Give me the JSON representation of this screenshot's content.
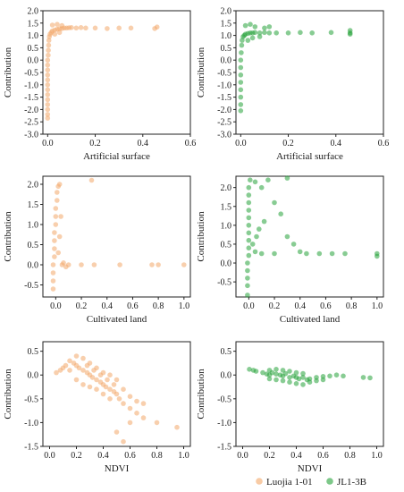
{
  "legend": {
    "position": "bottom-right",
    "items": [
      {
        "label": "Luojia 1-01",
        "color": "#f3a869"
      },
      {
        "label": "JL1-3B",
        "color": "#27a33a"
      }
    ]
  },
  "chart_data": [
    {
      "id": "artificial-surface-luojia",
      "type": "scatter",
      "xlabel": "Artificial surface",
      "ylabel": "Contribution",
      "xlim": [
        -0.02,
        0.6
      ],
      "ylim": [
        -3.0,
        2.0
      ],
      "xticks": [
        "0.0",
        "0.2",
        "0.4",
        "0.6"
      ],
      "yticks": [
        "-3.0",
        "-2.5",
        "-2.0",
        "-1.5",
        "-1.0",
        "-0.5",
        "0.0",
        "0.5",
        "1.0",
        "1.5",
        "2.0"
      ],
      "grid": false,
      "color": "#f3a869",
      "points": [
        [
          0.0,
          -2.35
        ],
        [
          0.0,
          -2.2
        ],
        [
          0.0,
          -2.0
        ],
        [
          0.0,
          -1.8
        ],
        [
          0.0,
          -1.6
        ],
        [
          0.0,
          -1.4
        ],
        [
          0.0,
          -1.2
        ],
        [
          0.0,
          -1.0
        ],
        [
          0.0,
          -0.8
        ],
        [
          0.0,
          -0.6
        ],
        [
          0.0,
          -0.4
        ],
        [
          0.0,
          -0.2
        ],
        [
          0.0,
          0.0
        ],
        [
          0.002,
          0.2
        ],
        [
          0.003,
          0.4
        ],
        [
          0.004,
          0.6
        ],
        [
          0.005,
          0.8
        ],
        [
          0.007,
          0.95
        ],
        [
          0.01,
          1.05
        ],
        [
          0.015,
          1.12
        ],
        [
          0.02,
          1.18
        ],
        [
          0.03,
          1.22
        ],
        [
          0.04,
          1.25
        ],
        [
          0.05,
          1.27
        ],
        [
          0.06,
          1.28
        ],
        [
          0.07,
          1.3
        ],
        [
          0.08,
          1.3
        ],
        [
          0.09,
          1.31
        ],
        [
          0.1,
          1.32
        ],
        [
          0.12,
          1.3
        ],
        [
          0.14,
          1.32
        ],
        [
          0.16,
          1.3
        ],
        [
          0.2,
          1.3
        ],
        [
          0.25,
          1.28
        ],
        [
          0.3,
          1.3
        ],
        [
          0.35,
          1.3
        ],
        [
          0.45,
          1.28
        ],
        [
          0.46,
          1.34
        ],
        [
          0.02,
          1.42
        ],
        [
          0.04,
          1.45
        ],
        [
          0.06,
          1.4
        ],
        [
          0.03,
          1.05
        ],
        [
          0.05,
          1.12
        ]
      ]
    },
    {
      "id": "artificial-surface-jl1",
      "type": "scatter",
      "xlabel": "Artificial surface",
      "ylabel": "Contribution",
      "xlim": [
        -0.02,
        0.6
      ],
      "ylim": [
        -3.0,
        2.0
      ],
      "xticks": [
        "0.0",
        "0.2",
        "0.4",
        "0.6"
      ],
      "yticks": [
        "-3.0",
        "-2.5",
        "-2.0",
        "-1.5",
        "-1.0",
        "-0.5",
        "0.0",
        "0.5",
        "1.0",
        "1.5",
        "2.0"
      ],
      "grid": false,
      "color": "#27a33a",
      "points": [
        [
          0.0,
          -2.05
        ],
        [
          0.0,
          -1.8
        ],
        [
          0.0,
          -1.5
        ],
        [
          0.0,
          -1.2
        ],
        [
          0.0,
          -0.9
        ],
        [
          0.0,
          -0.6
        ],
        [
          0.0,
          -0.3
        ],
        [
          0.0,
          0.0
        ],
        [
          0.002,
          0.3
        ],
        [
          0.004,
          0.6
        ],
        [
          0.006,
          0.8
        ],
        [
          0.01,
          0.95
        ],
        [
          0.015,
          1.0
        ],
        [
          0.02,
          1.05
        ],
        [
          0.03,
          1.08
        ],
        [
          0.04,
          1.1
        ],
        [
          0.05,
          1.1
        ],
        [
          0.06,
          1.12
        ],
        [
          0.08,
          1.1
        ],
        [
          0.1,
          1.12
        ],
        [
          0.12,
          1.1
        ],
        [
          0.15,
          1.1
        ],
        [
          0.2,
          1.1
        ],
        [
          0.25,
          1.12
        ],
        [
          0.3,
          1.1
        ],
        [
          0.38,
          1.12
        ],
        [
          0.46,
          1.1
        ],
        [
          0.46,
          1.2
        ],
        [
          0.46,
          1.05
        ],
        [
          0.02,
          1.4
        ],
        [
          0.04,
          1.45
        ],
        [
          0.06,
          1.35
        ],
        [
          0.03,
          0.8
        ],
        [
          0.05,
          0.9
        ],
        [
          0.08,
          0.95
        ],
        [
          0.1,
          1.3
        ],
        [
          0.12,
          1.35
        ]
      ]
    },
    {
      "id": "cultivated-land-luojia",
      "type": "scatter",
      "xlabel": "Cultivated land",
      "ylabel": "Contribution",
      "xlim": [
        -0.1,
        1.05
      ],
      "ylim": [
        -0.8,
        2.2
      ],
      "xticks": [
        "0.0",
        "0.2",
        "0.4",
        "0.6",
        "0.8",
        "1.0"
      ],
      "yticks": [
        "-0.5",
        "0.0",
        "0.5",
        "1.0",
        "1.5",
        "2.0"
      ],
      "grid": false,
      "color": "#f3a869",
      "points": [
        [
          -0.02,
          -0.6
        ],
        [
          -0.02,
          -0.4
        ],
        [
          -0.02,
          -0.2
        ],
        [
          -0.02,
          0.0
        ],
        [
          -0.01,
          0.2
        ],
        [
          -0.01,
          0.4
        ],
        [
          -0.01,
          0.6
        ],
        [
          -0.01,
          0.8
        ],
        [
          0.0,
          1.0
        ],
        [
          0.0,
          1.2
        ],
        [
          0.0,
          1.4
        ],
        [
          0.01,
          1.6
        ],
        [
          0.01,
          1.8
        ],
        [
          0.02,
          1.95
        ],
        [
          0.03,
          2.0
        ],
        [
          0.05,
          0.0
        ],
        [
          0.1,
          0.0
        ],
        [
          0.2,
          0.0
        ],
        [
          0.3,
          0.0
        ],
        [
          0.5,
          0.0
        ],
        [
          0.75,
          0.0
        ],
        [
          0.8,
          0.0
        ],
        [
          1.0,
          0.0
        ],
        [
          0.28,
          2.1
        ],
        [
          0.02,
          0.3
        ],
        [
          0.03,
          0.7
        ],
        [
          0.04,
          1.2
        ],
        [
          0.06,
          0.05
        ],
        [
          0.08,
          -0.05
        ]
      ]
    },
    {
      "id": "cultivated-land-jl1",
      "type": "scatter",
      "xlabel": "Cultivated land",
      "ylabel": "Contribution",
      "xlim": [
        -0.1,
        1.05
      ],
      "ylim": [
        -0.9,
        2.3
      ],
      "xticks": [
        "0.0",
        "0.2",
        "0.4",
        "0.6",
        "0.8",
        "1.0"
      ],
      "yticks": [
        "-0.5",
        "0.0",
        "0.5",
        "1.0",
        "1.5",
        "2.0"
      ],
      "grid": false,
      "color": "#27a33a",
      "points": [
        [
          -0.01,
          -0.85
        ],
        [
          -0.01,
          -0.6
        ],
        [
          -0.01,
          -0.4
        ],
        [
          -0.01,
          -0.2
        ],
        [
          -0.01,
          0.0
        ],
        [
          0.0,
          0.2
        ],
        [
          0.0,
          0.4
        ],
        [
          0.0,
          0.6
        ],
        [
          0.0,
          0.8
        ],
        [
          0.0,
          1.0
        ],
        [
          0.0,
          1.2
        ],
        [
          0.0,
          1.4
        ],
        [
          0.0,
          1.6
        ],
        [
          0.0,
          1.8
        ],
        [
          0.0,
          2.0
        ],
        [
          0.01,
          2.2
        ],
        [
          0.05,
          2.15
        ],
        [
          0.1,
          2.0
        ],
        [
          0.15,
          2.2
        ],
        [
          0.2,
          1.6
        ],
        [
          0.25,
          1.3
        ],
        [
          0.3,
          0.7
        ],
        [
          0.35,
          0.5
        ],
        [
          0.4,
          0.3
        ],
        [
          0.45,
          0.25
        ],
        [
          0.55,
          0.25
        ],
        [
          0.65,
          0.25
        ],
        [
          0.75,
          0.25
        ],
        [
          1.0,
          0.25
        ],
        [
          1.0,
          0.18
        ],
        [
          0.3,
          2.25
        ],
        [
          0.05,
          0.3
        ],
        [
          0.1,
          0.25
        ],
        [
          0.2,
          0.25
        ],
        [
          0.08,
          0.9
        ],
        [
          0.12,
          1.1
        ],
        [
          0.03,
          0.5
        ],
        [
          0.06,
          0.7
        ]
      ]
    },
    {
      "id": "ndvi-luojia",
      "type": "scatter",
      "xlabel": "NDVI",
      "ylabel": "Contribution",
      "xlim": [
        -0.05,
        1.05
      ],
      "ylim": [
        -1.5,
        0.7
      ],
      "xticks": [
        "0.0",
        "0.2",
        "0.4",
        "0.6",
        "0.8",
        "1.0"
      ],
      "yticks": [
        "-1.5",
        "-1.0",
        "-0.5",
        "0.0",
        "0.5"
      ],
      "grid": false,
      "color": "#f3a869",
      "points": [
        [
          0.05,
          0.05
        ],
        [
          0.08,
          0.1
        ],
        [
          0.1,
          0.15
        ],
        [
          0.12,
          0.2
        ],
        [
          0.15,
          0.3
        ],
        [
          0.18,
          0.25
        ],
        [
          0.2,
          0.2
        ],
        [
          0.22,
          0.15
        ],
        [
          0.25,
          0.1
        ],
        [
          0.28,
          0.05
        ],
        [
          0.3,
          0.0
        ],
        [
          0.32,
          -0.05
        ],
        [
          0.35,
          -0.1
        ],
        [
          0.38,
          -0.15
        ],
        [
          0.4,
          -0.2
        ],
        [
          0.42,
          -0.25
        ],
        [
          0.45,
          -0.3
        ],
        [
          0.48,
          -0.35
        ],
        [
          0.5,
          -0.4
        ],
        [
          0.52,
          -0.5
        ],
        [
          0.55,
          -0.6
        ],
        [
          0.6,
          -0.7
        ],
        [
          0.65,
          -0.8
        ],
        [
          0.7,
          -0.9
        ],
        [
          0.5,
          -1.2
        ],
        [
          0.55,
          -1.4
        ],
        [
          0.6,
          -1.0
        ],
        [
          0.95,
          -1.1
        ],
        [
          0.8,
          -1.0
        ],
        [
          0.2,
          0.4
        ],
        [
          0.25,
          0.35
        ],
        [
          0.3,
          0.25
        ],
        [
          0.35,
          0.15
        ],
        [
          0.4,
          0.05
        ],
        [
          0.45,
          0.0
        ],
        [
          0.5,
          -0.1
        ],
        [
          0.2,
          -0.1
        ],
        [
          0.25,
          -0.2
        ],
        [
          0.3,
          -0.25
        ],
        [
          0.35,
          -0.3
        ],
        [
          0.4,
          -0.4
        ],
        [
          0.45,
          -0.5
        ],
        [
          0.15,
          0.1
        ],
        [
          0.28,
          0.2
        ],
        [
          0.33,
          0.1
        ],
        [
          0.38,
          0.0
        ],
        [
          0.43,
          -0.1
        ],
        [
          0.48,
          -0.2
        ],
        [
          0.55,
          -0.3
        ],
        [
          0.6,
          -0.45
        ],
        [
          0.65,
          -0.55
        ],
        [
          0.7,
          -0.6
        ]
      ]
    },
    {
      "id": "ndvi-jl1",
      "type": "scatter",
      "xlabel": "NDVI",
      "ylabel": "Contribution",
      "xlim": [
        -0.05,
        1.05
      ],
      "ylim": [
        -1.5,
        0.7
      ],
      "xticks": [
        "0.0",
        "0.2",
        "0.4",
        "0.6",
        "0.8",
        "1.0"
      ],
      "yticks": [
        "-1.5",
        "-1.0",
        "-0.5",
        "0.0",
        "0.5"
      ],
      "grid": false,
      "color": "#27a33a",
      "points": [
        [
          0.05,
          0.12
        ],
        [
          0.08,
          0.1
        ],
        [
          0.1,
          0.08
        ],
        [
          0.15,
          0.05
        ],
        [
          0.18,
          0.02
        ],
        [
          0.2,
          0.0
        ],
        [
          0.22,
          0.05
        ],
        [
          0.25,
          0.02
        ],
        [
          0.28,
          0.0
        ],
        [
          0.3,
          -0.02
        ],
        [
          0.32,
          0.03
        ],
        [
          0.35,
          -0.05
        ],
        [
          0.38,
          -0.02
        ],
        [
          0.4,
          -0.05
        ],
        [
          0.42,
          -0.08
        ],
        [
          0.45,
          -0.05
        ],
        [
          0.48,
          -0.1
        ],
        [
          0.5,
          -0.08
        ],
        [
          0.55,
          -0.05
        ],
        [
          0.6,
          -0.03
        ],
        [
          0.65,
          -0.02
        ],
        [
          0.7,
          0.0
        ],
        [
          0.75,
          -0.02
        ],
        [
          0.9,
          -0.05
        ],
        [
          0.95,
          -0.06
        ],
        [
          0.2,
          0.1
        ],
        [
          0.25,
          0.12
        ],
        [
          0.3,
          0.1
        ],
        [
          0.35,
          0.08
        ],
        [
          0.4,
          0.05
        ],
        [
          0.45,
          0.03
        ],
        [
          0.2,
          -0.08
        ],
        [
          0.25,
          -0.1
        ],
        [
          0.3,
          -0.12
        ],
        [
          0.35,
          -0.15
        ],
        [
          0.4,
          -0.18
        ],
        [
          0.45,
          -0.2
        ],
        [
          0.5,
          -0.15
        ],
        [
          0.55,
          -0.12
        ],
        [
          0.6,
          -0.1
        ]
      ]
    }
  ]
}
